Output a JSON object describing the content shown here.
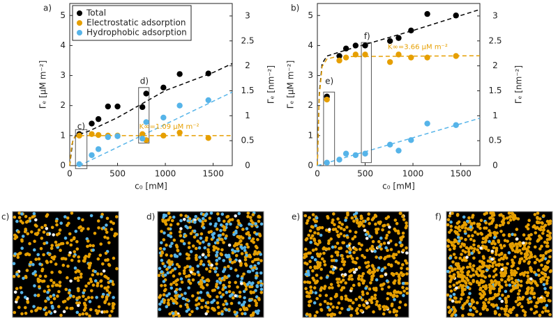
{
  "chart_data": [
    {
      "type": "scatter",
      "label": "a)",
      "xlabel": "c₀ [mM]",
      "ylabel": "Γₑ  [μM m⁻²]",
      "y2label": "Γₑ  [nm⁻²]",
      "xlim": [
        0,
        1700
      ],
      "ylim": [
        0,
        5.4
      ],
      "y2lim": [
        0,
        3.25
      ],
      "xticks": [
        0,
        500,
        1000,
        1500
      ],
      "yticks": [
        0,
        1,
        2,
        3,
        4,
        5
      ],
      "y2ticks": [
        0,
        0.5,
        1,
        1.5,
        2,
        2.5,
        3
      ],
      "legend": "upper left",
      "x": [
        100,
        230,
        300,
        400,
        500,
        760,
        800,
        980,
        1150,
        1450
      ],
      "series": [
        {
          "name": "Total",
          "color": "#000000",
          "values": [
            1.05,
            1.4,
            1.55,
            1.97,
            1.97,
            1.95,
            2.4,
            2.6,
            3.05,
            3.07
          ]
        },
        {
          "name": "Electrostatic adsorption",
          "color": "#e69f00",
          "values": [
            1.0,
            1.05,
            1.02,
            1.0,
            1.0,
            1.05,
            0.85,
            1.0,
            1.1,
            0.92
          ]
        },
        {
          "name": "Hydrophobic adsorption",
          "color": "#56b4e9",
          "values": [
            0.05,
            0.35,
            0.55,
            0.95,
            0.98,
            0.9,
            1.45,
            1.6,
            2.0,
            2.18
          ]
        }
      ],
      "fits": [
        {
          "color": "#000000",
          "x": [
            0,
            30,
            60,
            200,
            500,
            1000,
            1500,
            1700
          ],
          "values": [
            0,
            0.8,
            1.0,
            1.15,
            1.6,
            2.5,
            3.1,
            3.4
          ]
        },
        {
          "color": "#e69f00",
          "x": [
            0,
            20,
            50,
            100,
            1700
          ],
          "values": [
            0,
            0.7,
            0.95,
            1.0,
            1.0
          ]
        },
        {
          "color": "#56b4e9",
          "x": [
            100,
            1700
          ],
          "values": [
            0,
            2.45
          ]
        }
      ],
      "annotations": [
        "c)",
        "d)",
        "K∞=1.09  μM m⁻²"
      ]
    },
    {
      "type": "scatter",
      "label": "b)",
      "xlabel": "c₀ [mM]",
      "ylabel": "Γₑ  [μM m⁻²]",
      "y2label": "Γₑ  [nm⁻²]",
      "xlim": [
        0,
        1700
      ],
      "ylim": [
        0,
        5.4
      ],
      "y2lim": [
        0,
        3.25
      ],
      "xticks": [
        0,
        500,
        1000,
        1500
      ],
      "yticks": [
        0,
        1,
        2,
        3,
        4,
        5
      ],
      "y2ticks": [
        0,
        0.5,
        1,
        1.5,
        2,
        2.5,
        3
      ],
      "x": [
        100,
        230,
        300,
        400,
        500,
        760,
        850,
        980,
        1150,
        1450
      ],
      "series": [
        {
          "color": "#000000",
          "values": [
            2.3,
            3.65,
            3.9,
            4.0,
            4.0,
            4.15,
            4.25,
            4.5,
            5.05,
            5.0
          ]
        },
        {
          "color": "#e69f00",
          "values": [
            2.2,
            3.5,
            3.6,
            3.7,
            3.7,
            3.45,
            3.7,
            3.6,
            3.6,
            3.65
          ]
        },
        {
          "color": "#56b4e9",
          "values": [
            0.1,
            0.2,
            0.4,
            0.35,
            0.4,
            0.7,
            0.5,
            0.85,
            1.4,
            1.35
          ]
        }
      ],
      "fits": [
        {
          "color": "#000000",
          "x": [
            0,
            20,
            50,
            100,
            300,
            1000,
            1700
          ],
          "values": [
            0,
            2.4,
            3.4,
            3.65,
            3.85,
            4.5,
            5.2
          ]
        },
        {
          "color": "#e69f00",
          "x": [
            0,
            20,
            50,
            100,
            200,
            1700
          ],
          "values": [
            0,
            2.3,
            3.3,
            3.55,
            3.63,
            3.66
          ]
        },
        {
          "color": "#56b4e9",
          "x": [
            0,
            1700
          ],
          "values": [
            0,
            1.58
          ]
        }
      ],
      "annotations": [
        "e)",
        "f)",
        "K∞=3.66  μM m⁻²"
      ]
    }
  ],
  "snapshots": [
    "c)",
    "d)",
    "e)",
    "f)"
  ]
}
